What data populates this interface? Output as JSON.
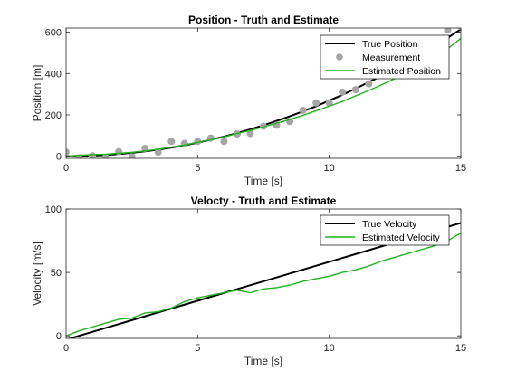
{
  "chart_data": [
    {
      "type": "line",
      "title": "Position - Truth and Estimate",
      "xlabel": "Time [s]",
      "ylabel": "Position [m]",
      "xlim": [
        0,
        15
      ],
      "ylim": [
        -10,
        620
      ],
      "xticks": [
        "0",
        "5",
        "10",
        "15"
      ],
      "yticks": [
        "0",
        "200",
        "400",
        "600"
      ],
      "legend_position": "top-right",
      "grid": false,
      "series": [
        {
          "name": "True Position",
          "style": "line",
          "color": "#000000",
          "x": [
            0,
            0.5,
            1,
            1.5,
            2,
            2.5,
            3,
            3.5,
            4,
            4.5,
            5,
            5.5,
            6,
            6.5,
            7,
            7.5,
            8,
            8.5,
            9,
            9.5,
            10,
            10.5,
            11,
            11.5,
            12,
            12.5,
            13,
            13.5,
            14,
            14.5,
            15
          ],
          "y": [
            0,
            1,
            3,
            6,
            11,
            17,
            24,
            32,
            42,
            53,
            66,
            80,
            95,
            112,
            130,
            150,
            171,
            193,
            217,
            242,
            269,
            297,
            327,
            358,
            390,
            424,
            459,
            496,
            534,
            573,
            614
          ]
        },
        {
          "name": "Measurement",
          "style": "points",
          "color": "#a6a6a6",
          "x": [
            0,
            0.5,
            1,
            1.5,
            2,
            2.5,
            3,
            3.5,
            4,
            4.5,
            5,
            5.5,
            6,
            6.5,
            7,
            7.5,
            8,
            8.5,
            9,
            9.5,
            10,
            10.5,
            11,
            11.5,
            14.5,
            15
          ],
          "y": [
            20,
            -8,
            2,
            -5,
            22,
            -3,
            38,
            20,
            72,
            62,
            72,
            88,
            72,
            108,
            110,
            145,
            150,
            168,
            222,
            258,
            258,
            310,
            322,
            350,
            610,
            628
          ]
        },
        {
          "name": "Estimated Position",
          "style": "line",
          "color": "#1fb31f",
          "x": [
            0,
            0.5,
            1,
            1.5,
            2,
            2.5,
            3,
            3.5,
            4,
            4.5,
            5,
            5.5,
            6,
            6.5,
            7,
            7.5,
            8,
            8.5,
            9,
            9.5,
            10,
            10.5,
            11,
            11.5,
            12,
            12.5,
            13,
            13.5,
            14,
            14.5,
            15
          ],
          "y": [
            0,
            5,
            8,
            10,
            14,
            19,
            26,
            34,
            44,
            55,
            67,
            80,
            94,
            110,
            125,
            142,
            160,
            178,
            198,
            220,
            242,
            265,
            292,
            318,
            346,
            376,
            408,
            440,
            475,
            520,
            570
          ]
        }
      ]
    },
    {
      "type": "line",
      "title": "Velocty - Truth and Estimate",
      "xlabel": "Time [s]",
      "ylabel": "Velocity [m/s]",
      "xlim": [
        0,
        15
      ],
      "ylim": [
        -2,
        100
      ],
      "xticks": [
        "0",
        "5",
        "10",
        "15"
      ],
      "yticks": [
        "0",
        "50",
        "100"
      ],
      "legend_position": "top-right",
      "grid": false,
      "series": [
        {
          "name": "True Velocity",
          "style": "line",
          "color": "#000000",
          "x": [
            0,
            15
          ],
          "y": [
            -3,
            89
          ]
        },
        {
          "name": "Estimated Velocity",
          "style": "line",
          "color": "#1fb31f",
          "x": [
            0,
            0.5,
            1,
            1.5,
            2,
            2.5,
            3,
            3.5,
            4,
            4.5,
            5,
            5.5,
            6,
            6.5,
            7,
            7.5,
            8,
            8.5,
            9,
            9.5,
            10,
            10.5,
            11,
            11.5,
            12,
            12.5,
            13,
            13.5,
            14,
            14.5,
            15
          ],
          "y": [
            0,
            4,
            7,
            10,
            13,
            14,
            18,
            19,
            22,
            27,
            30,
            32,
            34,
            36,
            34,
            37,
            38,
            40,
            43,
            45,
            47,
            50,
            52,
            55,
            59,
            62,
            65,
            68,
            71,
            75,
            81
          ]
        }
      ]
    }
  ]
}
